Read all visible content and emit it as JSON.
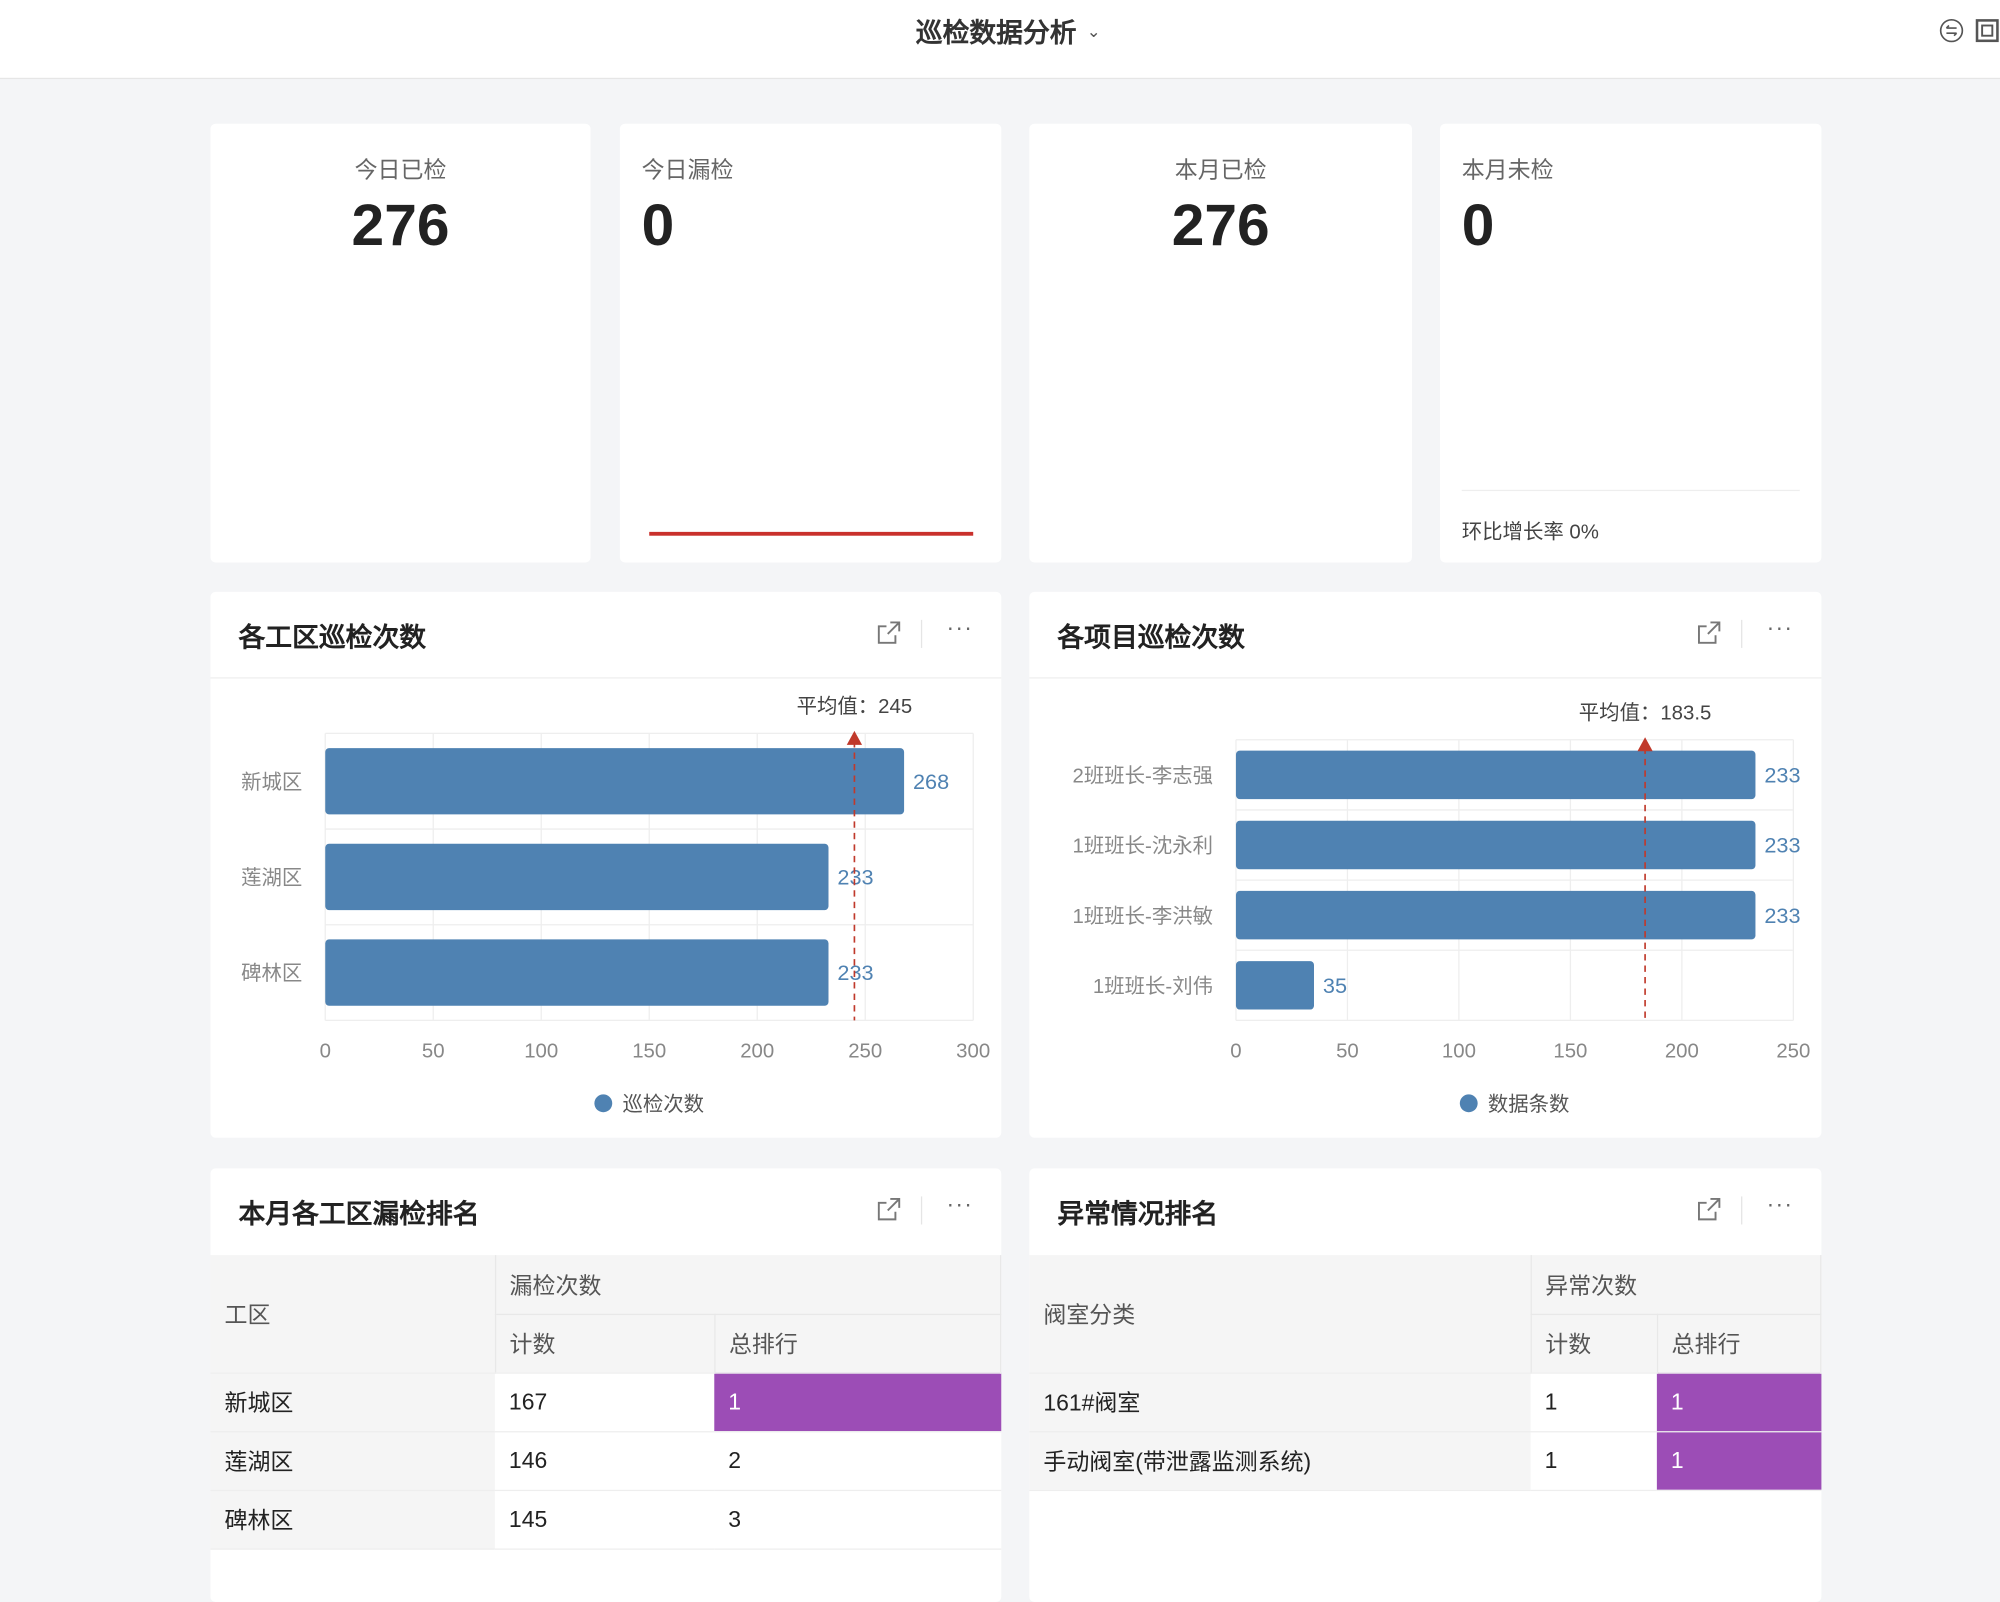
{
  "header": {
    "title": "巡检数据分析",
    "icons": [
      "switch-icon",
      "fullscreen-icon"
    ]
  },
  "kpis": [
    {
      "label": "今日已检",
      "value": "276"
    },
    {
      "label": "今日漏检",
      "value": "0"
    },
    {
      "label": "本月已检",
      "value": "276"
    },
    {
      "label": "本月未检",
      "value": "0",
      "footer": "环比增长率 0%"
    }
  ],
  "colors": {
    "bar": "#4f82b2",
    "avg_line": "#c0392b",
    "rank_highlight": "#9c4db6",
    "progress_line": "#c9302c"
  },
  "panels": {
    "workzone": {
      "title": "各工区巡检次数"
    },
    "project": {
      "title": "各项目巡检次数"
    },
    "missed": {
      "title": "本月各工区漏检排名"
    },
    "abnormal": {
      "title": "异常情况排名"
    }
  },
  "chart_data": [
    {
      "type": "bar",
      "orientation": "horizontal",
      "categories": [
        "新城区",
        "莲湖区",
        "碑林区"
      ],
      "series": [
        {
          "name": "巡检次数",
          "values": [
            268,
            233,
            233
          ]
        }
      ],
      "xlim": [
        0,
        300
      ],
      "ticks": [
        "0",
        "50",
        "100",
        "150",
        "200",
        "250",
        "300"
      ],
      "average": {
        "label": "平均值：245",
        "value": 245
      },
      "grid": true,
      "legend": "bottom"
    },
    {
      "type": "bar",
      "orientation": "horizontal",
      "categories": [
        "2班班长-李志强",
        "1班班长-沈永利",
        "1班班长-李洪敏",
        "1班班长-刘伟"
      ],
      "series": [
        {
          "name": "数据条数",
          "values": [
            233,
            233,
            233,
            35
          ]
        }
      ],
      "xlim": [
        0,
        250
      ],
      "ticks": [
        "0",
        "50",
        "100",
        "150",
        "200",
        "250"
      ],
      "average": {
        "label": "平均值：183.5",
        "value": 183.5
      },
      "grid": true,
      "legend": "bottom"
    }
  ],
  "missed_table": {
    "headers": {
      "zone": "工区",
      "group": "漏检次数",
      "count": "计数",
      "rank": "总排行"
    },
    "rows": [
      {
        "zone": "新城区",
        "count": "167",
        "rank": "1",
        "highlight": true
      },
      {
        "zone": "莲湖区",
        "count": "146",
        "rank": "2",
        "highlight": false
      },
      {
        "zone": "碑林区",
        "count": "145",
        "rank": "3",
        "highlight": false
      }
    ]
  },
  "abnormal_table": {
    "headers": {
      "category": "阀室分类",
      "group": "异常次数",
      "count": "计数",
      "rank": "总排行"
    },
    "rows": [
      {
        "category": "161#阀室",
        "count": "1",
        "rank": "1",
        "highlight": true
      },
      {
        "category": "手动阀室(带泄露监测系统)",
        "count": "1",
        "rank": "1",
        "highlight": true
      }
    ]
  }
}
